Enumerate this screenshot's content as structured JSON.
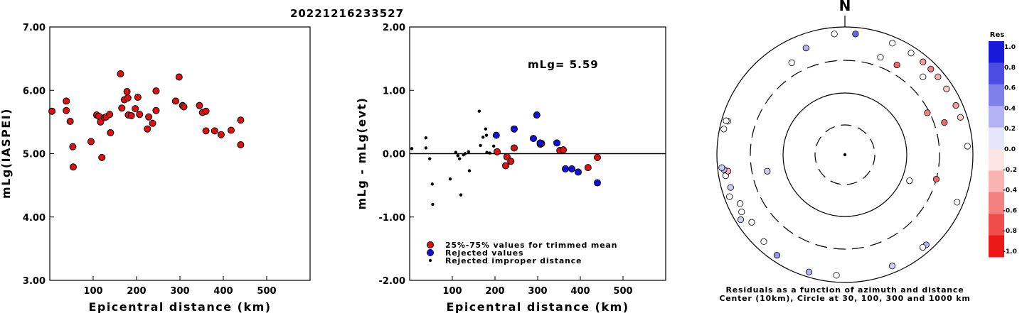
{
  "title": "20221216233527",
  "colors": {
    "red": "#dd1111",
    "blue": "#1111dd",
    "black": "#000000"
  },
  "chart_data": [
    {
      "type": "scatter",
      "name": "left",
      "xlabel": "Epicentral distance (km)",
      "ylabel": "mLg(IASPEI)",
      "xlim": [
        0,
        600
      ],
      "ylim": [
        3,
        7
      ],
      "xticks": [
        {
          "v": 100,
          "t": "100"
        },
        {
          "v": 200,
          "t": "200"
        },
        {
          "v": 300,
          "t": "300"
        },
        {
          "v": 400,
          "t": "400"
        },
        {
          "v": 500,
          "t": "500"
        }
      ],
      "yticks": [
        {
          "v": 3,
          "t": "3.00"
        },
        {
          "v": 4,
          "t": "4.00"
        },
        {
          "v": 5,
          "t": "5.00"
        },
        {
          "v": 6,
          "t": "6.00"
        },
        {
          "v": 7,
          "t": "7.00"
        }
      ],
      "series": [
        {
          "color": "red",
          "points": [
            [
              5,
              5.67
            ],
            [
              38,
              5.83
            ],
            [
              38,
              5.68
            ],
            [
              47,
              5.51
            ],
            [
              53,
              5.11
            ],
            [
              54,
              4.79
            ],
            [
              95,
              5.19
            ],
            [
              108,
              5.61
            ],
            [
              113,
              5.59
            ],
            [
              117,
              5.5
            ],
            [
              120,
              4.94
            ],
            [
              126,
              5.57
            ],
            [
              130,
              5.58
            ],
            [
              138,
              5.62
            ],
            [
              140,
              5.33
            ],
            [
              163,
              6.26
            ],
            [
              166,
              5.72
            ],
            [
              172,
              5.85
            ],
            [
              178,
              5.98
            ],
            [
              180,
              5.88
            ],
            [
              181,
              5.61
            ],
            [
              188,
              5.6
            ],
            [
              197,
              5.71
            ],
            [
              203,
              5.89
            ],
            [
              207,
              5.62
            ],
            [
              225,
              5.39
            ],
            [
              228,
              5.58
            ],
            [
              237,
              5.48
            ],
            [
              245,
              5.99
            ],
            [
              245,
              5.68
            ],
            [
              290,
              5.83
            ],
            [
              298,
              6.21
            ],
            [
              306,
              5.76
            ],
            [
              309,
              5.74
            ],
            [
              345,
              5.76
            ],
            [
              352,
              5.65
            ],
            [
              360,
              5.67
            ],
            [
              360,
              5.36
            ],
            [
              380,
              5.36
            ],
            [
              395,
              5.3
            ],
            [
              418,
              5.37
            ],
            [
              440,
              5.53
            ],
            [
              440,
              5.14
            ]
          ]
        }
      ]
    },
    {
      "type": "scatter",
      "name": "middle",
      "xlabel": "Epicentral distance (km)",
      "ylabel": "mLg - mLg(evt)",
      "xlim": [
        0,
        600
      ],
      "ylim": [
        -2,
        2
      ],
      "xticks": [
        {
          "v": 100,
          "t": "100"
        },
        {
          "v": 200,
          "t": "200"
        },
        {
          "v": 300,
          "t": "300"
        },
        {
          "v": 400,
          "t": "400"
        },
        {
          "v": 500,
          "t": "500"
        }
      ],
      "yticks": [
        {
          "v": -2,
          "t": "-2.00"
        },
        {
          "v": -1,
          "t": "-1.00"
        },
        {
          "v": 0,
          "t": "0.00"
        },
        {
          "v": 1,
          "t": "1.00"
        },
        {
          "v": 2,
          "t": "2.00"
        }
      ],
      "zero_line": 0,
      "annotation": "mLg= 5.59",
      "legend": [
        {
          "label": "25%-75% values for trimmed mean",
          "color": "red"
        },
        {
          "label": "Rejected values",
          "color": "blue"
        },
        {
          "label": "Rejected improper distance",
          "color": "black"
        }
      ],
      "series": [
        {
          "color": "red",
          "points": [
            [
              205,
              0.03
            ],
            [
              225,
              -0.19
            ],
            [
              228,
              -0.05
            ],
            [
              237,
              -0.12
            ],
            [
              245,
              0.09
            ],
            [
              306,
              0.15
            ],
            [
              309,
              0.16
            ],
            [
              352,
              0.05
            ],
            [
              360,
              0.06
            ],
            [
              418,
              -0.22
            ],
            [
              440,
              -0.06
            ]
          ]
        },
        {
          "color": "blue",
          "points": [
            [
              203,
              0.29
            ],
            [
              245,
              0.39
            ],
            [
              290,
              0.24
            ],
            [
              298,
              0.61
            ],
            [
              306,
              0.17
            ],
            [
              345,
              0.17
            ],
            [
              365,
              -0.24
            ],
            [
              380,
              -0.24
            ],
            [
              395,
              -0.29
            ],
            [
              440,
              -0.46
            ]
          ]
        },
        {
          "color": "black",
          "points": [
            [
              5,
              0.08
            ],
            [
              38,
              0.25
            ],
            [
              38,
              0.09
            ],
            [
              47,
              -0.08
            ],
            [
              53,
              -0.48
            ],
            [
              54,
              -0.8
            ],
            [
              95,
              -0.4
            ],
            [
              108,
              0.02
            ],
            [
              113,
              -0.03
            ],
            [
              117,
              -0.08
            ],
            [
              120,
              -0.65
            ],
            [
              126,
              -0.02
            ],
            [
              130,
              0.0
            ],
            [
              138,
              0.03
            ],
            [
              140,
              -0.27
            ],
            [
              163,
              0.67
            ],
            [
              166,
              0.13
            ],
            [
              172,
              0.26
            ],
            [
              178,
              0.39
            ],
            [
              180,
              0.29
            ],
            [
              181,
              0.02
            ],
            [
              188,
              0.01
            ],
            [
              197,
              0.12
            ]
          ]
        }
      ]
    },
    {
      "type": "polar",
      "name": "azimuth",
      "north_label": "N",
      "caption_line1": "Residuals as a function of azimuth and distance",
      "caption_line2": "Center (10km), Circle at 30, 100, 300 and 1000 km",
      "colorbar_title": "Res",
      "colorbar_ticks": [
        "1.0",
        "0.8",
        "0.6",
        "0.4",
        "0.2",
        "0.0",
        "-0.2",
        "-0.4",
        "-0.6",
        "-0.8",
        "-1.0"
      ],
      "points": [
        {
          "az": 355,
          "dist": 790,
          "res": 0.0
        },
        {
          "az": 5,
          "dist": 790,
          "res": 0.6
        },
        {
          "az": 23,
          "dist": 790,
          "res": 0.0
        },
        {
          "az": 33,
          "dist": 790,
          "res": 0.0
        },
        {
          "az": 40,
          "dist": 790,
          "res": -0.4
        },
        {
          "az": 45,
          "dist": 790,
          "res": -0.5
        },
        {
          "az": 50,
          "dist": 790,
          "res": -0.3
        },
        {
          "az": 57,
          "dist": 780,
          "res": -0.2
        },
        {
          "az": 66,
          "dist": 790,
          "res": -0.4
        },
        {
          "az": 72,
          "dist": 790,
          "res": -0.2
        },
        {
          "az": 86,
          "dist": 830,
          "res": 0.0
        },
        {
          "az": 113,
          "dist": 800,
          "res": 0.0
        },
        {
          "az": 138,
          "dist": 790,
          "res": 0.3
        },
        {
          "az": 140,
          "dist": 780,
          "res": 0.0
        },
        {
          "az": 157,
          "dist": 780,
          "res": 0.2
        },
        {
          "az": 184,
          "dist": 780,
          "res": 0.0
        },
        {
          "az": 197,
          "dist": 830,
          "res": 0.3
        },
        {
          "az": 214,
          "dist": 790,
          "res": 0.4
        },
        {
          "az": 223,
          "dist": 720,
          "res": 0.0
        },
        {
          "az": 234,
          "dist": 630,
          "res": 0.0
        },
        {
          "az": 238,
          "dist": 830,
          "res": 0.2
        },
        {
          "az": 241,
          "dist": 700,
          "res": 0.0
        },
        {
          "az": 245,
          "dist": 640,
          "res": 0.0
        },
        {
          "az": 250,
          "dist": 830,
          "res": 0.0
        },
        {
          "az": 254,
          "dist": 720,
          "res": 0.2
        },
        {
          "az": 260,
          "dist": 780,
          "res": 0.0
        },
        {
          "az": 262,
          "dist": 700,
          "res": -0.3
        },
        {
          "az": 263,
          "dist": 800,
          "res": 0.3
        },
        {
          "az": 264,
          "dist": 860,
          "res": 0.2
        },
        {
          "az": 282,
          "dist": 860,
          "res": 0.0
        },
        {
          "az": 286,
          "dist": 800,
          "res": 0.0
        },
        {
          "az": 286,
          "dist": 850,
          "res": 0.0
        },
        {
          "az": 330,
          "dist": 460,
          "res": 0.0
        },
        {
          "az": 340,
          "dist": 600,
          "res": 0.3
        },
        {
          "az": 20,
          "dist": 420,
          "res": 0.0
        },
        {
          "az": 30,
          "dist": 420,
          "res": -0.6
        },
        {
          "az": 45,
          "dist": 530,
          "res": 0.0
        },
        {
          "az": 63,
          "dist": 280,
          "res": -0.5
        },
        {
          "az": 72,
          "dist": 430,
          "res": -0.6
        },
        {
          "az": 105,
          "dist": 300,
          "res": -0.6
        },
        {
          "az": 112,
          "dist": 130,
          "res": 0.0
        },
        {
          "az": 258,
          "dist": 180,
          "res": 0.2
        }
      ]
    }
  ]
}
